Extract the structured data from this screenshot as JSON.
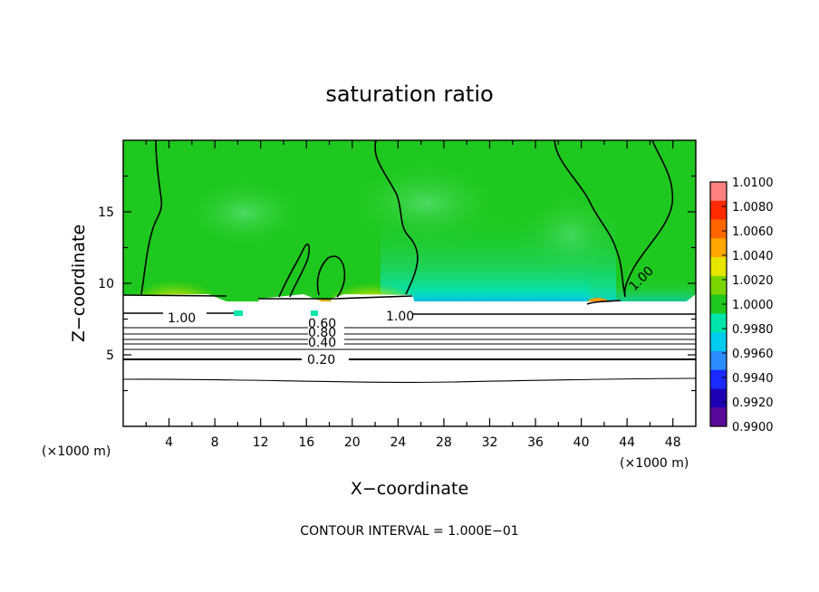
{
  "chart_data": {
    "type": "heatmap",
    "title": "saturation ratio",
    "xlabel": "X−coordinate",
    "ylabel": "Z−coordinate",
    "x_unit_label": "(×1000 m)",
    "x_ticks": [
      4,
      8,
      12,
      16,
      20,
      24,
      28,
      32,
      36,
      40,
      44,
      48
    ],
    "x_tick_labels": [
      "4",
      "8",
      "12",
      "16",
      "20",
      "24",
      "28",
      "32",
      "36",
      "40",
      "44",
      "48"
    ],
    "y_ticks": [
      5,
      10,
      15
    ],
    "y_tick_labels": [
      "5",
      "10",
      "15"
    ],
    "xlim": [
      0,
      50
    ],
    "ylim": [
      0,
      20
    ],
    "grid": false,
    "colorbar": {
      "range": [
        0.99,
        1.01
      ],
      "labels": [
        "1.0100",
        "1.0080",
        "1.0060",
        "1.0040",
        "1.0020",
        "1.0000",
        "0.9980",
        "0.9960",
        "0.9940",
        "0.9920",
        "0.9900"
      ],
      "colors": [
        "#ff8080",
        "#ff2a00",
        "#ff6600",
        "#ffa600",
        "#e6e600",
        "#7ad400",
        "#1ec81e",
        "#00e6aa",
        "#00ccee",
        "#2a8cff",
        "#1a2aff",
        "#1e00b4",
        "#5a0a9a"
      ]
    },
    "contour_labels": [
      "1.00",
      "1.00",
      "1.00",
      "0.60",
      "0.80",
      "0.40",
      "0.20"
    ],
    "footnote": "CONTOUR INTERVAL = 1.000E−01"
  }
}
